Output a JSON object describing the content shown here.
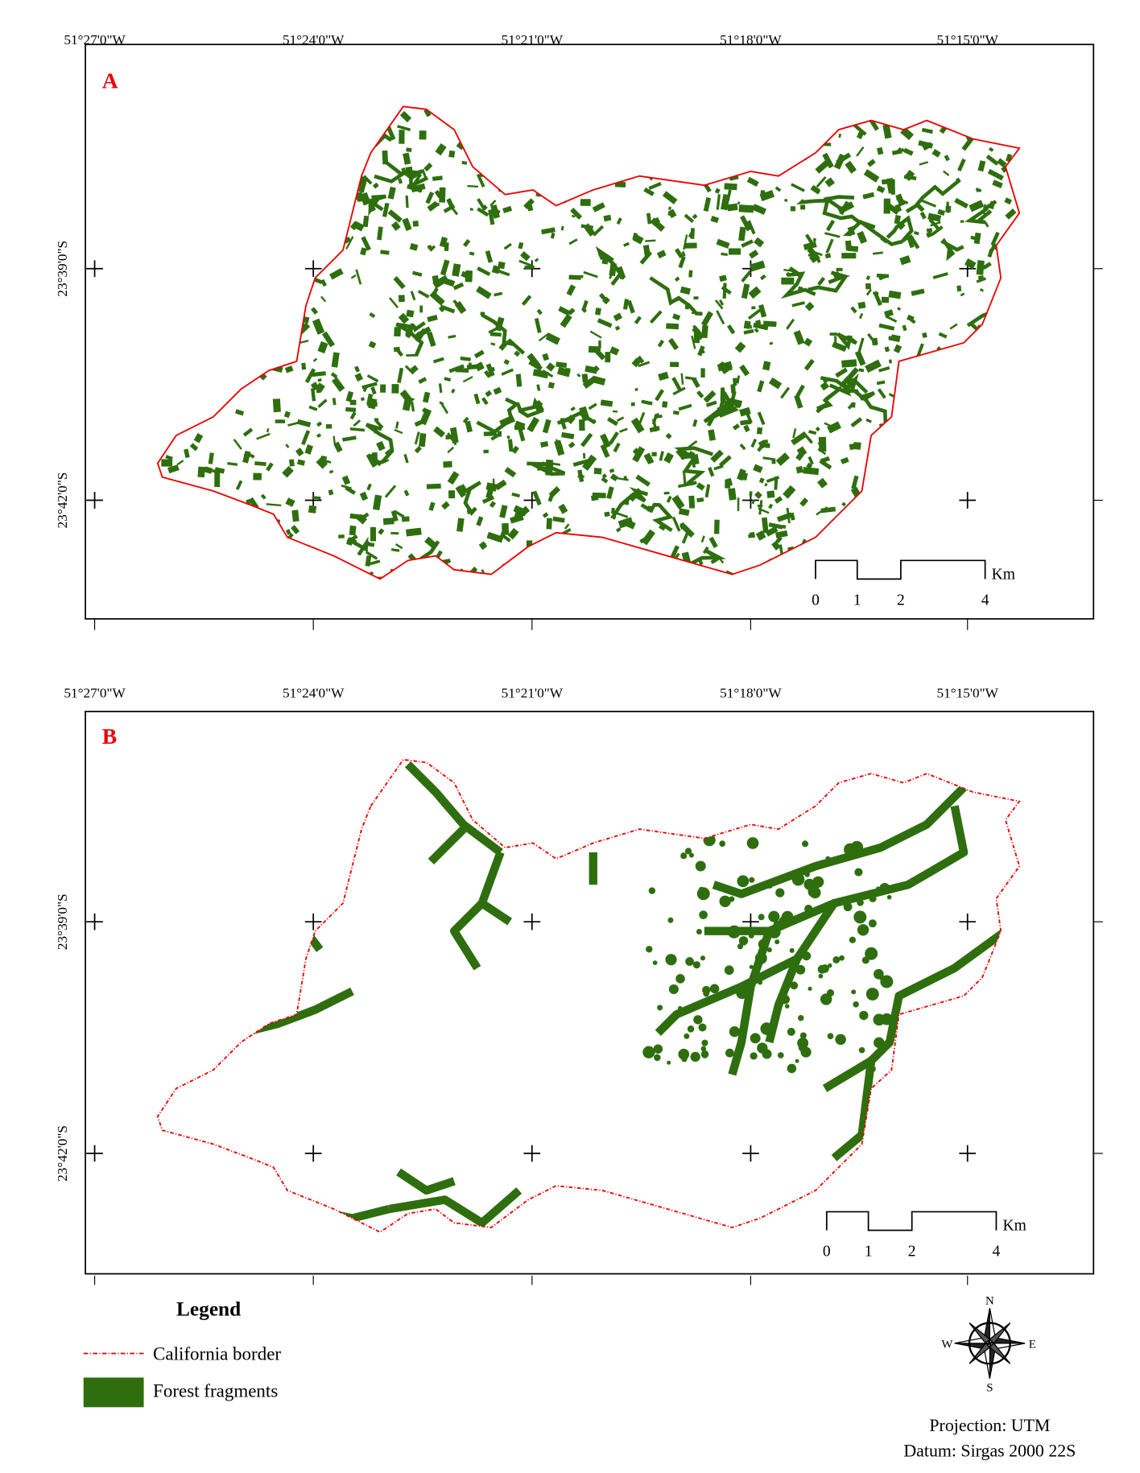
{
  "panels": [
    {
      "label": "A",
      "longitudes": [
        "51°27'0\"W",
        "51°24'0\"W",
        "51°21'0\"W",
        "51°18'0\"W",
        "51°15'0\"W"
      ],
      "latitudes": [
        "23°39'0\"S",
        "23°42'0\"S"
      ],
      "scale": {
        "ticks": [
          "0",
          "1",
          "2",
          "4"
        ],
        "unit": "Km"
      }
    },
    {
      "label": "B",
      "longitudes": [
        "51°27'0\"W",
        "51°24'0\"W",
        "51°21'0\"W",
        "51°18'0\"W",
        "51°15'0\"W"
      ],
      "latitudes": [
        "23°39'0\"S",
        "23°42'0\"S"
      ],
      "scale": {
        "ticks": [
          "0",
          "1",
          "2",
          "4"
        ],
        "unit": "Km"
      }
    }
  ],
  "legend": {
    "title": "Legend",
    "items": [
      "California border",
      "Forest fragments"
    ]
  },
  "compass": {
    "north": "N",
    "east": "E",
    "south": "S",
    "west": "W"
  },
  "projection": "Projection: UTM",
  "datum": "Datum: Sirgas 2000 22S"
}
